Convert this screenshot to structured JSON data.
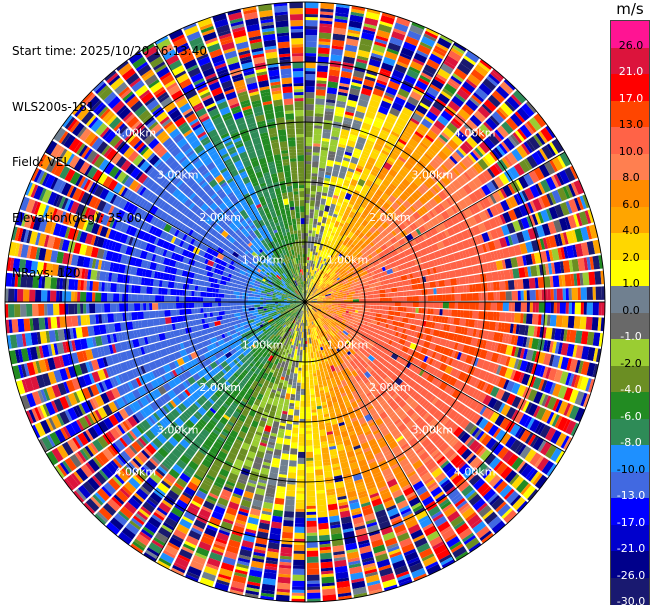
{
  "info": {
    "start_time": "Start time: 2025/10/20 16:13:40",
    "instrument": "WLS200s-181",
    "field": "Field: VEL",
    "elevation": "Elevation(deg): 35.00",
    "nrays": "NRays: 120"
  },
  "colorbar": {
    "unit": "m/s",
    "levels": [
      {
        "label": "26.0",
        "color": "#ff1493"
      },
      {
        "label": "21.0",
        "color": "#dc143c"
      },
      {
        "label": "17.0",
        "color": "#ff0000"
      },
      {
        "label": "13.0",
        "color": "#ff4500"
      },
      {
        "label": "10.0",
        "color": "#ff6347"
      },
      {
        "label": "8.0",
        "color": "#ff7f50"
      },
      {
        "label": "6.0",
        "color": "#ff8c00"
      },
      {
        "label": "4.0",
        "color": "#ffa500"
      },
      {
        "label": "2.0",
        "color": "#ffd700"
      },
      {
        "label": "1.0",
        "color": "#ffff00"
      },
      {
        "label": "0.0",
        "color": "#708090"
      },
      {
        "label": "-1.0",
        "color": "#696969"
      },
      {
        "label": "-2.0",
        "color": "#9acd32"
      },
      {
        "label": "-4.0",
        "color": "#6b8e23"
      },
      {
        "label": "-6.0",
        "color": "#228b22"
      },
      {
        "label": "-8.0",
        "color": "#2e8b57"
      },
      {
        "label": "-10.0",
        "color": "#1e90ff"
      },
      {
        "label": "-13.0",
        "color": "#4169e1"
      },
      {
        "label": "-17.0",
        "color": "#0000ff"
      },
      {
        "label": "-21.0",
        "color": "#0000cd"
      },
      {
        "label": "-26.0",
        "color": "#00008b"
      },
      {
        "label": "-30.0",
        "color": "#191970"
      }
    ]
  },
  "chart_data": {
    "type": "heatmap",
    "projection": "polar PPI",
    "field": "VEL",
    "units": "m/s",
    "elevation_deg": 35.0,
    "n_rays": 120,
    "range_rings": [
      {
        "label": "1.00km",
        "value": 1.0
      },
      {
        "label": "2.00km",
        "value": 2.0
      },
      {
        "label": "3.00km",
        "value": 3.0
      },
      {
        "label": "4.00km",
        "value": 4.0
      }
    ],
    "max_range_km": 5.0,
    "pattern": {
      "max_positive_velocity_azimuth_deg": 100,
      "approx_peak_velocity_ms": 13,
      "noisy_beyond_km": 3.3,
      "data_range_ms": [
        -30,
        26
      ]
    }
  }
}
